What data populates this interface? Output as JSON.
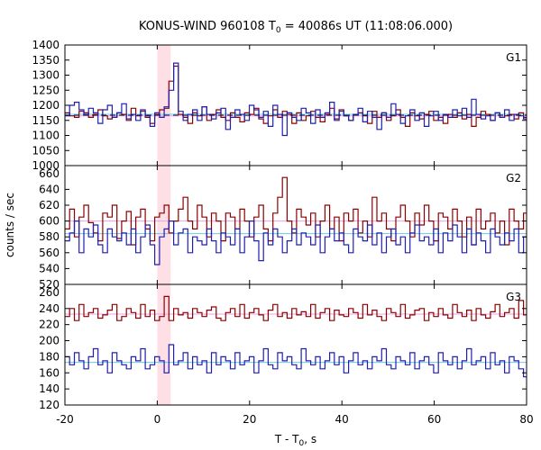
{
  "chart_data": {
    "type": "line",
    "title_parts": {
      "prefix": "KONUS-WIND 960108 T",
      "sub": "0",
      "suffix": " = 40086s UT (11:08:06.000)"
    },
    "xlabel_parts": {
      "prefix": "T - T",
      "sub": "0",
      "suffix": ", s"
    },
    "ylabel": "counts / sec",
    "xlim": [
      -20,
      80
    ],
    "xticks": [
      "-20",
      "0",
      "20",
      "40",
      "60",
      "80"
    ],
    "highlight_x": [
      0,
      2.9
    ],
    "bin_width": 1.024,
    "colors": {
      "dark_red": "#8b0000",
      "dark_blue": "#1f1fb0",
      "pink": "#e8a0e8",
      "cyan": "#6cc6e6",
      "highlight": "#ffdfe6",
      "dash": "#1a1a3a"
    },
    "panels": [
      {
        "label": "G1",
        "ylim": [
          1000,
          1400
        ],
        "yticks": [
          "1000",
          "1050",
          "1100",
          "1150",
          "1200",
          "1250",
          "1300",
          "1350",
          "1400"
        ],
        "series": [
          {
            "color": "#8b0000",
            "bg_level": 1165,
            "bg_color": "#e8a0e8",
            "values": [
              1175,
              1165,
              1160,
              1180,
              1175,
              1160,
              1170,
              1185,
              1165,
              1155,
              1160,
              1175,
              1170,
              1150,
              1190,
              1165,
              1180,
              1160,
              1140,
              1170,
              1185,
              1190,
              1280,
              1330,
              1170,
              1160,
              1140,
              1175,
              1165,
              1195,
              1150,
              1170,
              1185,
              1160,
              1150,
              1175,
              1160,
              1145,
              1175,
              1170,
              1190,
              1155,
              1140,
              1165,
              1185,
              1160,
              1180,
              1170,
              1140,
              1175,
              1150,
              1165,
              1180,
              1160,
              1145,
              1170,
              1190,
              1155,
              1185,
              1165,
              1150,
              1170,
              1175,
              1165,
              1140,
              1180,
              1160,
              1175,
              1150,
              1165,
              1185,
              1160,
              1130,
              1175,
              1165,
              1155,
              1170,
              1180,
              1150,
              1160,
              1140,
              1170,
              1160,
              1175,
              1155,
              1170,
              1130,
              1160,
              1180,
              1170,
              1150,
              1175,
              1160,
              1165,
              1170,
              1155,
              1175,
              1160
            ]
          },
          {
            "color": "#1f1fb0",
            "bg_level": 1170,
            "bg_color": "#6cc6e6",
            "values": [
              1165,
              1200,
              1210,
              1185,
              1170,
              1190,
              1175,
              1140,
              1185,
              1200,
              1160,
              1175,
              1205,
              1155,
              1170,
              1150,
              1185,
              1165,
              1130,
              1175,
              1160,
              1195,
              1250,
              1340,
              1180,
              1150,
              1170,
              1185,
              1150,
              1195,
              1170,
              1155,
              1175,
              1190,
              1120,
              1160,
              1185,
              1170,
              1150,
              1200,
              1185,
              1160,
              1180,
              1130,
              1200,
              1170,
              1100,
              1175,
              1160,
              1150,
              1190,
              1175,
              1140,
              1185,
              1160,
              1175,
              1210,
              1150,
              1180,
              1165,
              1150,
              1170,
              1190,
              1145,
              1180,
              1160,
              1120,
              1175,
              1160,
              1205,
              1170,
              1140,
              1165,
              1185,
              1150,
              1175,
              1130,
              1165,
              1180,
              1150,
              1170,
              1160,
              1185,
              1165,
              1190,
              1160,
              1220,
              1170,
              1155,
              1165,
              1150,
              1175,
              1160,
              1185,
              1150,
              1170,
              1165,
              1155
            ]
          }
        ]
      },
      {
        "label": "G2",
        "ylim": [
          520,
          670
        ],
        "yticks": [
          "520",
          "540",
          "560",
          "580",
          "600",
          "620",
          "640",
          "660"
        ],
        "series": [
          {
            "color": "#8b0000",
            "bg_level": 600,
            "bg_color": "#e8a0e8",
            "values": [
              590,
              615,
              580,
              605,
              620,
              598,
              585,
              575,
              610,
              605,
              620,
              578,
              600,
              612,
              570,
              605,
              615,
              590,
              575,
              605,
              610,
              620,
              585,
              600,
              615,
              630,
              600,
              590,
              620,
              605,
              580,
              610,
              600,
              575,
              610,
              605,
              590,
              615,
              600,
              580,
              605,
              620,
              590,
              575,
              610,
              630,
              655,
              600,
              585,
              615,
              605,
              595,
              610,
              580,
              600,
              620,
              590,
              605,
              575,
              610,
              600,
              615,
              585,
              600,
              580,
              630,
              600,
              610,
              590,
              575,
              605,
              620,
              600,
              580,
              610,
              595,
              620,
              600,
              575,
              610,
              605,
              590,
              615,
              600,
              580,
              605,
              570,
              615,
              590,
              600,
              610,
              585,
              600,
              570,
              615,
              600,
              590,
              610
            ]
          },
          {
            "color": "#1f1fb0",
            "bg_level": 584,
            "bg_color": "#6cc6e6",
            "values": [
              575,
              585,
              600,
              560,
              590,
              580,
              595,
              570,
              560,
              590,
              580,
              575,
              585,
              570,
              590,
              560,
              580,
              595,
              570,
              545,
              580,
              590,
              600,
              570,
              585,
              590,
              560,
              580,
              575,
              570,
              590,
              575,
              560,
              585,
              580,
              570,
              590,
              560,
              580,
              600,
              575,
              550,
              585,
              570,
              590,
              580,
              560,
              575,
              590,
              570,
              585,
              580,
              570,
              595,
              560,
              580,
              590,
              575,
              585,
              570,
              560,
              590,
              580,
              575,
              595,
              570,
              585,
              560,
              580,
              590,
              570,
              580,
              560,
              585,
              595,
              575,
              580,
              570,
              590,
              560,
              585,
              575,
              595,
              580,
              560,
              590,
              570,
              585,
              575,
              560,
              590,
              580,
              570,
              585,
              575,
              590,
              560,
              580
            ]
          }
        ]
      },
      {
        "label": "G3",
        "ylim": [
          120,
          270
        ],
        "yticks": [
          "120",
          "140",
          "160",
          "180",
          "200",
          "220",
          "240",
          "260"
        ],
        "series": [
          {
            "color": "#8b0000",
            "bg_level": 233,
            "bg_color": "#e8a0e8",
            "values": [
              230,
              240,
              225,
              245,
              230,
              235,
              240,
              228,
              232,
              238,
              245,
              225,
              230,
              240,
              235,
              228,
              245,
              230,
              238,
              225,
              230,
              255,
              225,
              240,
              232,
              235,
              228,
              240,
              235,
              230,
              238,
              242,
              228,
              225,
              235,
              240,
              230,
              245,
              228,
              235,
              240,
              232,
              225,
              238,
              245,
              230,
              235,
              228,
              240,
              232,
              236,
              230,
              245,
              228,
              235,
              240,
              225,
              238,
              232,
              230,
              240,
              235,
              228,
              245,
              232,
              238,
              230,
              225,
              240,
              235,
              230,
              245,
              228,
              232,
              238,
              240,
              225,
              235,
              230,
              240,
              232,
              228,
              245,
              235,
              230,
              238,
              225,
              240,
              232,
              228,
              236,
              245,
              230,
              235,
              240,
              228,
              250,
              232
            ]
          },
          {
            "color": "#1f1fb0",
            "bg_level": 173,
            "bg_color": "#6cc6e6",
            "values": [
              180,
              170,
              185,
              175,
              165,
              180,
              190,
              170,
              175,
              160,
              185,
              175,
              170,
              165,
              180,
              175,
              190,
              165,
              170,
              180,
              175,
              160,
              195,
              170,
              175,
              185,
              165,
              180,
              170,
              175,
              160,
              185,
              170,
              180,
              175,
              165,
              185,
              170,
              175,
              180,
              160,
              175,
              190,
              170,
              165,
              185,
              175,
              180,
              170,
              165,
              190,
              175,
              170,
              180,
              165,
              175,
              185,
              170,
              180,
              160,
              175,
              185,
              170,
              175,
              165,
              180,
              175,
              190,
              170,
              165,
              180,
              175,
              170,
              185,
              165,
              175,
              180,
              170,
              160,
              185,
              175,
              170,
              180,
              165,
              175,
              190,
              170,
              175,
              180,
              165,
              185,
              170,
              175,
              160,
              180,
              175,
              165,
              155
            ]
          }
        ]
      }
    ]
  }
}
